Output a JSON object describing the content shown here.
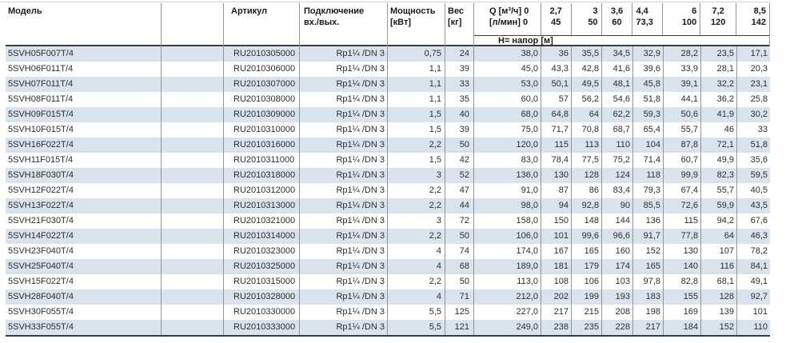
{
  "colors": {
    "alt_row_blue": "#d9e3ee",
    "grid_line_gray": "#8e959d",
    "heavy_rule_dark": "#3c3c3c",
    "top_rule_light": "#c8d1dc"
  },
  "table": {
    "headers": {
      "model": "Модель",
      "article": "Артикул",
      "connection_line1": "Подключение",
      "connection_line2": "вх./вых.",
      "power_line1": "Мощность",
      "power_line2": "[кВт]",
      "weight_line1": "Вес",
      "weight_line2": "[кг]",
      "q_line1": "Q [м³/ч] 0",
      "q_line2": "[л/мин] 0",
      "head_label": "Н= напор [м]",
      "flow_columns": [
        {
          "m3h": "2,7",
          "lmin": "45",
          "align": "center"
        },
        {
          "m3h": "3",
          "lmin": "50",
          "align": "right"
        },
        {
          "m3h": "3,6",
          "lmin": "60",
          "align": "center"
        },
        {
          "m3h": "4,4",
          "lmin": "73,3",
          "align": "left"
        },
        {
          "m3h": "6",
          "lmin": "100",
          "align": "right"
        },
        {
          "m3h": "7,2",
          "lmin": "120",
          "align": "center"
        },
        {
          "m3h": "8,5",
          "lmin": "142",
          "align": "right"
        }
      ]
    },
    "rows": [
      {
        "model": "5SVH05F007T/4",
        "article": "RU2010305000",
        "connection": "Rp1¼ /DN 3",
        "power_kw": "0,75",
        "weight_kg": "24",
        "head_m": [
          "38,0",
          "36",
          "35,5",
          "34,5",
          "32,9",
          "28,2",
          "23,5",
          "17,1"
        ]
      },
      {
        "model": "5SVH06F011T/4",
        "article": "RU2010306000",
        "connection": "Rp1¼ /DN 3",
        "power_kw": "1,1",
        "weight_kg": "39",
        "head_m": [
          "45,0",
          "43,3",
          "42,8",
          "41,6",
          "39,6",
          "33,9",
          "28,1",
          "20,3"
        ]
      },
      {
        "model": "5SVH07F011T/4",
        "article": "RU2010307000",
        "connection": "Rp1¼ /DN 3",
        "power_kw": "1,1",
        "weight_kg": "33",
        "head_m": [
          "53,0",
          "50,1",
          "49,5",
          "48,1",
          "45,8",
          "39,1",
          "32,2",
          "23,1"
        ]
      },
      {
        "model": "5SVH08F011T/4",
        "article": "RU2010308000",
        "connection": "Rp1¼ /DN 3",
        "power_kw": "1,1",
        "weight_kg": "35",
        "head_m": [
          "60,0",
          "57",
          "56,2",
          "54,6",
          "51,8",
          "44,1",
          "36,2",
          "25,8"
        ]
      },
      {
        "model": "5SVH09F015T/4",
        "article": "RU2010309000",
        "connection": "Rp1¼ /DN 3",
        "power_kw": "1,5",
        "weight_kg": "40",
        "head_m": [
          "68,0",
          "64,8",
          "64",
          "62,2",
          "59,3",
          "50,6",
          "41,9",
          "30,2"
        ]
      },
      {
        "model": "5SVH10F015T/4",
        "article": "RU2010310000",
        "connection": "Rp1¼ /DN 3",
        "power_kw": "1,5",
        "weight_kg": "39",
        "head_m": [
          "75,0",
          "71,7",
          "70,8",
          "68,7",
          "65,4",
          "55,7",
          "46",
          "33"
        ]
      },
      {
        "model": "5SVH16F022T/4",
        "article": "RU2010316000",
        "connection": "Rp1¼ /DN 3",
        "power_kw": "2,2",
        "weight_kg": "50",
        "head_m": [
          "120,0",
          "115",
          "113",
          "110",
          "104",
          "87,8",
          "72,1",
          "51,8"
        ]
      },
      {
        "model": "5SVH11F015T/4",
        "article": "RU2010311000",
        "connection": "Rp1¼ /DN 3",
        "power_kw": "1,5",
        "weight_kg": "42",
        "head_m": [
          "83,0",
          "78,4",
          "77,5",
          "75,2",
          "71,4",
          "60,7",
          "49,9",
          "35,6"
        ]
      },
      {
        "model": "5SVH18F030T/4",
        "article": "RU2010318000",
        "connection": "Rp1¼ /DN 3",
        "power_kw": "3",
        "weight_kg": "52",
        "head_m": [
          "136,0",
          "130",
          "128",
          "124",
          "118",
          "99,9",
          "82,3",
          "59,5"
        ]
      },
      {
        "model": "5SVH12F022T/4",
        "article": "RU2010312000",
        "connection": "Rp1¼ /DN 3",
        "power_kw": "2,2",
        "weight_kg": "47",
        "head_m": [
          "91,0",
          "87",
          "86",
          "83,4",
          "79,3",
          "67,4",
          "55,7",
          "40,5"
        ]
      },
      {
        "model": "5SVH13F022T/4",
        "article": "RU2010313000",
        "connection": "Rp1¼ /DN 3",
        "power_kw": "2,2",
        "weight_kg": "44",
        "head_m": [
          "98,0",
          "94",
          "92,8",
          "90",
          "85,5",
          "72,6",
          "59,9",
          "43,5"
        ]
      },
      {
        "model": "5SVH21F030T/4",
        "article": "RU2010321000",
        "connection": "Rp1¼ /DN 3",
        "power_kw": "3",
        "weight_kg": "72",
        "head_m": [
          "158,0",
          "150",
          "148",
          "144",
          "136",
          "115",
          "94,2",
          "67,6"
        ]
      },
      {
        "model": "5SVH14F022T/4",
        "article": "RU2010314000",
        "connection": "Rp1¼ /DN 3",
        "power_kw": "2,2",
        "weight_kg": "50",
        "head_m": [
          "106,0",
          "101",
          "99,6",
          "96,6",
          "91,7",
          "77,8",
          "64",
          "46,3"
        ]
      },
      {
        "model": "5SVH23F040T/4",
        "article": "RU2010323000",
        "connection": "Rp1¼ /DN 3",
        "power_kw": "4",
        "weight_kg": "74",
        "head_m": [
          "174,0",
          "167",
          "165",
          "160",
          "152",
          "130",
          "107",
          "78,2"
        ]
      },
      {
        "model": "5SVH25F040T/4",
        "article": "RU2010325000",
        "connection": "Rp1¼ /DN 3",
        "power_kw": "4",
        "weight_kg": "68",
        "head_m": [
          "189,0",
          "181",
          "179",
          "174",
          "165",
          "140",
          "116",
          "84,1"
        ]
      },
      {
        "model": "5SVH15F022T/4",
        "article": "RU2010315000",
        "connection": "Rp1¼ /DN 3",
        "power_kw": "2,2",
        "weight_kg": "50",
        "head_m": [
          "113,0",
          "108",
          "106",
          "103",
          "97,8",
          "82,8",
          "68,1",
          "49,1"
        ]
      },
      {
        "model": "5SVH28F040T/4",
        "article": "RU2010328000",
        "connection": "Rp1¼ /DN 3",
        "power_kw": "4",
        "weight_kg": "71",
        "head_m": [
          "212,0",
          "202",
          "199",
          "193",
          "183",
          "155",
          "128",
          "92,7"
        ]
      },
      {
        "model": "5SVH30F055T/4",
        "article": "RU2010330000",
        "connection": "Rp1¼ /DN 3",
        "power_kw": "5,5",
        "weight_kg": "125",
        "head_m": [
          "227,0",
          "217",
          "215",
          "208",
          "198",
          "169",
          "139",
          "101"
        ]
      },
      {
        "model": "5SVH33F055T/4",
        "article": "RU2010333000",
        "connection": "Rp1¼ /DN 3",
        "power_kw": "5,5",
        "weight_kg": "121",
        "head_m": [
          "249,0",
          "238",
          "235",
          "228",
          "217",
          "184",
          "152",
          "110"
        ]
      }
    ]
  }
}
